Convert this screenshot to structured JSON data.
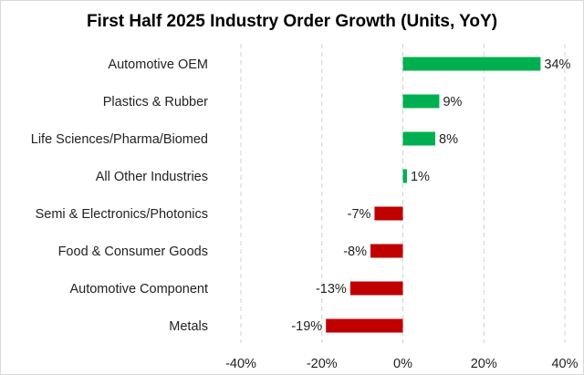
{
  "chart_data": {
    "type": "bar",
    "orientation": "horizontal",
    "title": "First Half 2025 Industry Order Growth (Units, YoY)",
    "categories": [
      "Automotive OEM",
      "Plastics & Rubber",
      "Life Sciences/Pharma/Biomed",
      "All Other Industries",
      "Semi & Electronics/Photonics",
      "Food & Consumer Goods",
      "Automotive Component",
      "Metals"
    ],
    "values": [
      34,
      9,
      8,
      1,
      -7,
      -8,
      -13,
      -19
    ],
    "value_labels": [
      "34%",
      "9%",
      "8%",
      "1%",
      "-7%",
      "-8%",
      "-13%",
      "-19%"
    ],
    "xlim": [
      -40,
      40
    ],
    "xticks": [
      -40,
      -20,
      0,
      20,
      40
    ],
    "xtick_labels": [
      "-40%",
      "-20%",
      "0%",
      "20%",
      "40%"
    ],
    "xlabel": "",
    "ylabel": "",
    "grid": "vertical dashed",
    "legend": "none",
    "colors": {
      "positive": "#00b050",
      "negative": "#c00000",
      "grid": "#d0d0d0"
    }
  }
}
